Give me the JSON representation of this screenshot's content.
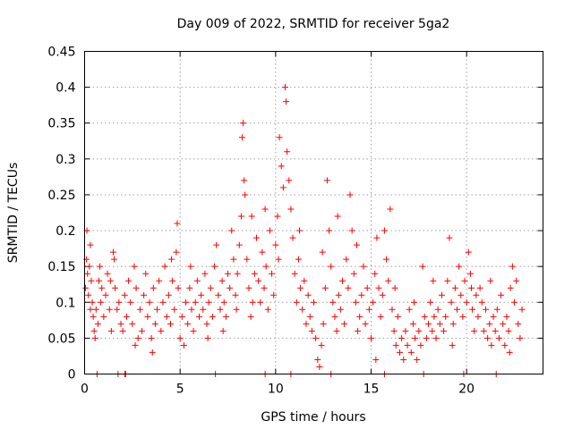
{
  "chart_data": {
    "type": "scatter",
    "title": "Day 009 of 2022, SRMTID for receiver 5ga2",
    "xlabel": "GPS time / hours",
    "ylabel": "SRMTID / TECUs",
    "xlim": [
      0,
      24
    ],
    "ylim": [
      0,
      0.45
    ],
    "grid": true,
    "xticks": [
      0,
      5,
      10,
      15,
      20
    ],
    "xtick_labels": [
      "0",
      "5",
      "10",
      "15",
      "20"
    ],
    "yticks": [
      0,
      0.05,
      0.1,
      0.15,
      0.2,
      0.25,
      0.3,
      0.35,
      0.4,
      0.45
    ],
    "ytick_labels": [
      "0",
      "0.05",
      "0.1",
      "0.15",
      "0.2",
      "0.25",
      "0.3",
      "0.35",
      "0.4",
      "0.45"
    ],
    "marker": "+",
    "color": "#ff0000",
    "series": [
      {
        "name": "SRMTID",
        "points": [
          [
            0.05,
            0.12
          ],
          [
            0.1,
            0.16
          ],
          [
            0.12,
            0.2
          ],
          [
            0.15,
            0.14
          ],
          [
            0.2,
            0.11
          ],
          [
            0.25,
            0.15
          ],
          [
            0.3,
            0.09
          ],
          [
            0.35,
            0.13
          ],
          [
            0.4,
            0.1
          ],
          [
            0.45,
            0.08
          ],
          [
            0.5,
            0.06
          ],
          [
            0.55,
            0.05
          ],
          [
            0.6,
            0.09
          ],
          [
            0.7,
            0.07
          ],
          [
            0.75,
            0.13
          ],
          [
            0.8,
            0.15
          ],
          [
            0.85,
            0.1
          ],
          [
            0.9,
            0.12
          ],
          [
            1.0,
            0.08
          ],
          [
            1.1,
            0.11
          ],
          [
            1.2,
            0.14
          ],
          [
            1.3,
            0.09
          ],
          [
            1.4,
            0.06
          ],
          [
            1.5,
            0.17
          ],
          [
            1.55,
            0.16
          ],
          [
            1.6,
            0.12
          ],
          [
            1.7,
            0.09
          ],
          [
            1.8,
            0.1
          ],
          [
            1.9,
            0.07
          ],
          [
            2.0,
            0.06
          ],
          [
            2.1,
            0.11
          ],
          [
            2.2,
            0.08
          ],
          [
            2.3,
            0.13
          ],
          [
            2.4,
            0.1
          ],
          [
            2.5,
            0.07
          ],
          [
            2.6,
            0.15
          ],
          [
            2.7,
            0.12
          ],
          [
            2.8,
            0.05
          ],
          [
            2.9,
            0.09
          ],
          [
            3.0,
            0.06
          ],
          [
            3.1,
            0.11
          ],
          [
            3.2,
            0.14
          ],
          [
            3.3,
            0.08
          ],
          [
            3.4,
            0.1
          ],
          [
            3.5,
            0.05
          ],
          [
            3.6,
            0.12
          ],
          [
            3.7,
            0.07
          ],
          [
            3.8,
            0.09
          ],
          [
            3.9,
            0.13
          ],
          [
            4.0,
            0.06
          ],
          [
            4.1,
            0.1
          ],
          [
            4.2,
            0.15
          ],
          [
            4.3,
            0.08
          ],
          [
            4.4,
            0.11
          ],
          [
            4.5,
            0.07
          ],
          [
            4.6,
            0.13
          ],
          [
            4.7,
            0.09
          ],
          [
            4.8,
            0.17
          ],
          [
            4.85,
            0.21
          ],
          [
            4.9,
            0.12
          ],
          [
            5.0,
            0.05
          ],
          [
            5.1,
            0.08
          ],
          [
            5.2,
            0.04
          ],
          [
            5.3,
            0.1
          ],
          [
            5.4,
            0.07
          ],
          [
            5.5,
            0.12
          ],
          [
            5.6,
            0.09
          ],
          [
            5.7,
            0.06
          ],
          [
            5.8,
            0.1
          ],
          [
            5.9,
            0.13
          ],
          [
            6.0,
            0.08
          ],
          [
            6.1,
            0.11
          ],
          [
            6.2,
            0.09
          ],
          [
            6.3,
            0.14
          ],
          [
            6.4,
            0.07
          ],
          [
            6.5,
            0.1
          ],
          [
            6.6,
            0.12
          ],
          [
            6.7,
            0.08
          ],
          [
            6.8,
            0.15
          ],
          [
            6.9,
            0.18
          ],
          [
            7.0,
            0.11
          ],
          [
            7.1,
            0.09
          ],
          [
            7.2,
            0.13
          ],
          [
            7.3,
            0.1
          ],
          [
            7.4,
            0.08
          ],
          [
            7.5,
            0.14
          ],
          [
            7.6,
            0.12
          ],
          [
            7.7,
            0.2
          ],
          [
            7.8,
            0.16
          ],
          [
            7.9,
            0.11
          ],
          [
            8.0,
            0.14
          ],
          [
            8.1,
            0.18
          ],
          [
            8.2,
            0.22
          ],
          [
            8.25,
            0.33
          ],
          [
            8.3,
            0.35
          ],
          [
            8.35,
            0.27
          ],
          [
            8.4,
            0.25
          ],
          [
            8.5,
            0.16
          ],
          [
            8.6,
            0.12
          ],
          [
            8.7,
            0.08
          ],
          [
            8.8,
            0.1
          ],
          [
            8.9,
            0.14
          ],
          [
            9.0,
            0.19
          ],
          [
            9.1,
            0.13
          ],
          [
            9.2,
            0.1
          ],
          [
            9.3,
            0.17
          ],
          [
            9.4,
            0.12
          ],
          [
            9.5,
            0.15
          ],
          [
            9.6,
            0.09
          ],
          [
            9.7,
            0.2
          ],
          [
            9.8,
            0.14
          ],
          [
            9.9,
            0.11
          ],
          [
            10.0,
            0.18
          ],
          [
            10.1,
            0.22
          ],
          [
            10.2,
            0.33
          ],
          [
            10.3,
            0.29
          ],
          [
            10.4,
            0.26
          ],
          [
            10.5,
            0.4
          ],
          [
            10.55,
            0.38
          ],
          [
            10.6,
            0.31
          ],
          [
            10.7,
            0.27
          ],
          [
            10.8,
            0.23
          ],
          [
            10.9,
            0.19
          ],
          [
            11.0,
            0.14
          ],
          [
            11.1,
            0.1
          ],
          [
            11.2,
            0.16
          ],
          [
            11.3,
            0.12
          ],
          [
            11.4,
            0.09
          ],
          [
            11.5,
            0.13
          ],
          [
            11.6,
            0.07
          ],
          [
            11.7,
            0.11
          ],
          [
            11.8,
            0.08
          ],
          [
            11.9,
            0.06
          ],
          [
            12.0,
            0.1
          ],
          [
            12.1,
            0.05
          ],
          [
            12.2,
            0.02
          ],
          [
            12.3,
            0.01
          ],
          [
            12.4,
            0.04
          ],
          [
            12.5,
            0.07
          ],
          [
            12.6,
            0.12
          ],
          [
            12.7,
            0.27
          ],
          [
            12.8,
            0.2
          ],
          [
            12.9,
            0.15
          ],
          [
            13.0,
            0.1
          ],
          [
            13.1,
            0.08
          ],
          [
            13.2,
            0.06
          ],
          [
            13.3,
            0.11
          ],
          [
            13.4,
            0.09
          ],
          [
            13.5,
            0.13
          ],
          [
            13.6,
            0.07
          ],
          [
            13.7,
            0.16
          ],
          [
            13.8,
            0.12
          ],
          [
            13.9,
            0.25
          ],
          [
            14.0,
            0.2
          ],
          [
            14.1,
            0.14
          ],
          [
            14.2,
            0.1
          ],
          [
            14.3,
            0.06
          ],
          [
            14.4,
            0.08
          ],
          [
            14.5,
            0.11
          ],
          [
            14.6,
            0.15
          ],
          [
            14.7,
            0.07
          ],
          [
            14.8,
            0.12
          ],
          [
            14.9,
            0.09
          ],
          [
            15.0,
            0.05
          ],
          [
            15.1,
            0.1
          ],
          [
            15.2,
            0.14
          ],
          [
            15.3,
            0.19
          ],
          [
            15.4,
            0.12
          ],
          [
            15.5,
            0.08
          ],
          [
            15.6,
            0.11
          ],
          [
            15.7,
            0.2
          ],
          [
            15.8,
            0.16
          ],
          [
            15.9,
            0.13
          ],
          [
            16.0,
            0.23
          ],
          [
            16.1,
            0.09
          ],
          [
            16.2,
            0.06
          ],
          [
            16.3,
            0.04
          ],
          [
            16.4,
            0.08
          ],
          [
            16.5,
            0.03
          ],
          [
            16.6,
            0.05
          ],
          [
            16.7,
            0.02
          ],
          [
            16.8,
            0.06
          ],
          [
            16.9,
            0.04
          ],
          [
            17.0,
            0.09
          ],
          [
            17.1,
            0.03
          ],
          [
            17.2,
            0.07
          ],
          [
            17.3,
            0.05
          ],
          [
            17.4,
            0.02
          ],
          [
            17.5,
            0.06
          ],
          [
            17.6,
            0.04
          ],
          [
            17.7,
            0.15
          ],
          [
            17.8,
            0.08
          ],
          [
            17.9,
            0.05
          ],
          [
            18.0,
            0.07
          ],
          [
            18.1,
            0.1
          ],
          [
            18.2,
            0.06
          ],
          [
            18.3,
            0.08
          ],
          [
            18.4,
            0.05
          ],
          [
            18.5,
            0.09
          ],
          [
            18.6,
            0.07
          ],
          [
            18.7,
            0.11
          ],
          [
            18.8,
            0.06
          ],
          [
            18.9,
            0.08
          ],
          [
            19.0,
            0.13
          ],
          [
            19.1,
            0.19
          ],
          [
            19.2,
            0.1
          ],
          [
            19.3,
            0.07
          ],
          [
            19.4,
            0.12
          ],
          [
            19.5,
            0.09
          ],
          [
            19.6,
            0.15
          ],
          [
            19.7,
            0.11
          ],
          [
            19.8,
            0.08
          ],
          [
            19.9,
            0.13
          ],
          [
            20.0,
            0.1
          ],
          [
            20.1,
            0.17
          ],
          [
            20.2,
            0.14
          ],
          [
            20.3,
            0.09
          ],
          [
            20.4,
            0.06
          ],
          [
            20.5,
            0.11
          ],
          [
            20.6,
            0.08
          ],
          [
            20.7,
            0.12
          ],
          [
            20.8,
            0.1
          ],
          [
            20.9,
            0.06
          ],
          [
            21.0,
            0.09
          ],
          [
            21.1,
            0.05
          ],
          [
            21.2,
            0.07
          ],
          [
            21.3,
            0.04
          ],
          [
            21.4,
            0.08
          ],
          [
            21.5,
            0.06
          ],
          [
            21.6,
            0.09
          ],
          [
            21.7,
            0.05
          ],
          [
            21.8,
            0.11
          ],
          [
            21.9,
            0.07
          ],
          [
            22.0,
            0.04
          ],
          [
            22.1,
            0.08
          ],
          [
            22.2,
            0.06
          ],
          [
            22.3,
            0.12
          ],
          [
            22.4,
            0.15
          ],
          [
            22.5,
            0.1
          ],
          [
            22.6,
            0.13
          ],
          [
            22.7,
            0.07
          ],
          [
            22.8,
            0.05
          ],
          [
            22.9,
            0.09
          ],
          [
            0.3,
            0.18
          ],
          [
            1.35,
            0.13
          ],
          [
            2.65,
            0.04
          ],
          [
            3.55,
            0.03
          ],
          [
            4.55,
            0.16
          ],
          [
            5.55,
            0.15
          ],
          [
            6.45,
            0.05
          ],
          [
            7.25,
            0.06
          ],
          [
            7.95,
            0.09
          ],
          [
            8.75,
            0.22
          ],
          [
            9.45,
            0.23
          ],
          [
            10.15,
            0.16
          ],
          [
            11.25,
            0.2
          ],
          [
            12.45,
            0.17
          ],
          [
            13.25,
            0.22
          ],
          [
            14.25,
            0.18
          ],
          [
            15.25,
            0.02
          ],
          [
            16.25,
            0.12
          ],
          [
            17.25,
            0.1
          ],
          [
            18.25,
            0.13
          ],
          [
            19.25,
            0.04
          ],
          [
            20.25,
            0.12
          ],
          [
            21.25,
            0.13
          ],
          [
            22.25,
            0.03
          ],
          [
            0.65,
            0.0
          ],
          [
            1.75,
            0.0
          ],
          [
            2.1,
            0.0
          ],
          [
            6.85,
            0.0
          ],
          [
            9.45,
            0.0
          ],
          [
            12.9,
            0.0
          ],
          [
            15.7,
            0.0
          ],
          [
            17.75,
            0.0
          ],
          [
            19.85,
            0.0
          ],
          [
            21.55,
            0.0
          ],
          [
            2.15,
            0.0
          ],
          [
            10.8,
            0.0
          ]
        ]
      }
    ]
  }
}
